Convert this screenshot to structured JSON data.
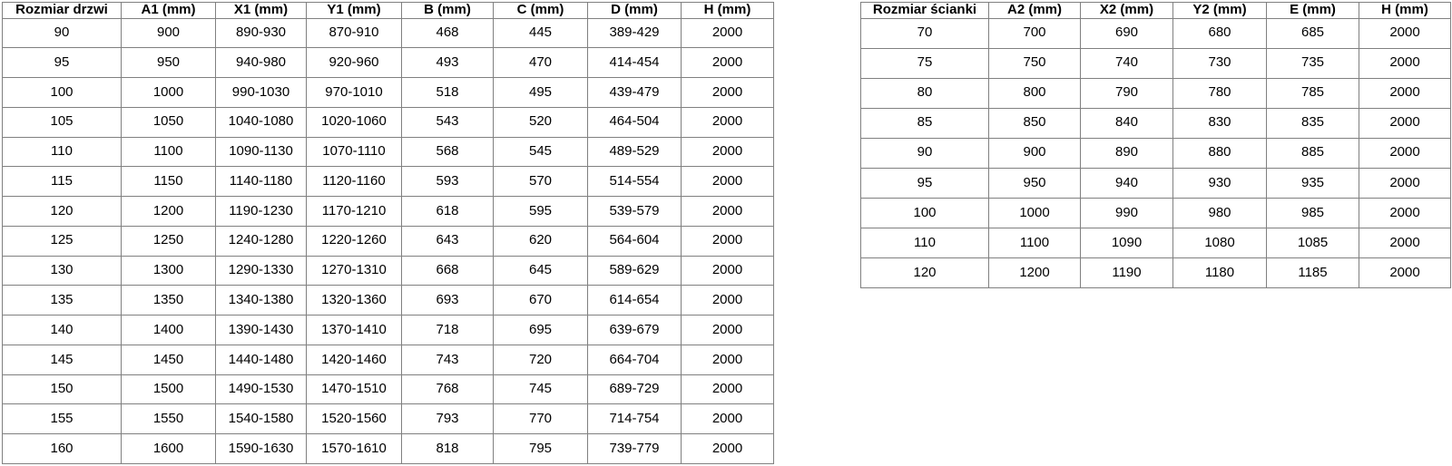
{
  "page": {
    "background": "#ffffff",
    "border_color": "#808080",
    "text_color": "#000000"
  },
  "tables": [
    {
      "id": "door-size-table",
      "headers": [
        "Rozmiar drzwi",
        "A1 (mm)",
        "X1 (mm)",
        "Y1 (mm)",
        "B (mm)",
        "C (mm)",
        "D (mm)",
        "H (mm)"
      ],
      "rows": [
        [
          "90",
          "900",
          "890-930",
          "870-910",
          "468",
          "445",
          "389-429",
          "2000"
        ],
        [
          "95",
          "950",
          "940-980",
          "920-960",
          "493",
          "470",
          "414-454",
          "2000"
        ],
        [
          "100",
          "1000",
          "990-1030",
          "970-1010",
          "518",
          "495",
          "439-479",
          "2000"
        ],
        [
          "105",
          "1050",
          "1040-1080",
          "1020-1060",
          "543",
          "520",
          "464-504",
          "2000"
        ],
        [
          "110",
          "1100",
          "1090-1130",
          "1070-1110",
          "568",
          "545",
          "489-529",
          "2000"
        ],
        [
          "115",
          "1150",
          "1140-1180",
          "1120-1160",
          "593",
          "570",
          "514-554",
          "2000"
        ],
        [
          "120",
          "1200",
          "1190-1230",
          "1170-1210",
          "618",
          "595",
          "539-579",
          "2000"
        ],
        [
          "125",
          "1250",
          "1240-1280",
          "1220-1260",
          "643",
          "620",
          "564-604",
          "2000"
        ],
        [
          "130",
          "1300",
          "1290-1330",
          "1270-1310",
          "668",
          "645",
          "589-629",
          "2000"
        ],
        [
          "135",
          "1350",
          "1340-1380",
          "1320-1360",
          "693",
          "670",
          "614-654",
          "2000"
        ],
        [
          "140",
          "1400",
          "1390-1430",
          "1370-1410",
          "718",
          "695",
          "639-679",
          "2000"
        ],
        [
          "145",
          "1450",
          "1440-1480",
          "1420-1460",
          "743",
          "720",
          "664-704",
          "2000"
        ],
        [
          "150",
          "1500",
          "1490-1530",
          "1470-1510",
          "768",
          "745",
          "689-729",
          "2000"
        ],
        [
          "155",
          "1550",
          "1540-1580",
          "1520-1560",
          "793",
          "770",
          "714-754",
          "2000"
        ],
        [
          "160",
          "1600",
          "1590-1630",
          "1570-1610",
          "818",
          "795",
          "739-779",
          "2000"
        ]
      ]
    },
    {
      "id": "wall-size-table",
      "headers": [
        "Rozmiar ścianki",
        "A2 (mm)",
        "X2 (mm)",
        "Y2 (mm)",
        "E (mm)",
        "H (mm)"
      ],
      "rows": [
        [
          "70",
          "700",
          "690",
          "680",
          "685",
          "2000"
        ],
        [
          "75",
          "750",
          "740",
          "730",
          "735",
          "2000"
        ],
        [
          "80",
          "800",
          "790",
          "780",
          "785",
          "2000"
        ],
        [
          "85",
          "850",
          "840",
          "830",
          "835",
          "2000"
        ],
        [
          "90",
          "900",
          "890",
          "880",
          "885",
          "2000"
        ],
        [
          "95",
          "950",
          "940",
          "930",
          "935",
          "2000"
        ],
        [
          "100",
          "1000",
          "990",
          "980",
          "985",
          "2000"
        ],
        [
          "110",
          "1100",
          "1090",
          "1080",
          "1085",
          "2000"
        ],
        [
          "120",
          "1200",
          "1190",
          "1180",
          "1185",
          "2000"
        ]
      ]
    }
  ]
}
